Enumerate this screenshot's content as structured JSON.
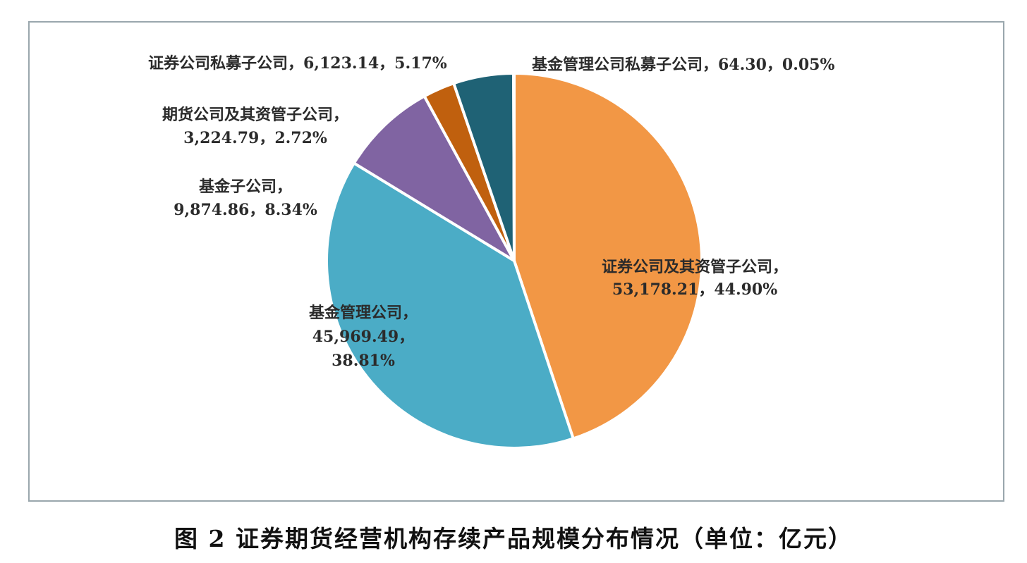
{
  "caption": "图 2   证券期货经营机构存续产品规模分布情况（单位：亿元）",
  "chart_data": {
    "type": "pie",
    "title": "",
    "unit": "亿元",
    "start_angle_deg": 0,
    "direction": "clockwise",
    "slices": [
      {
        "name": "证券公司及其资管子公司",
        "value": 53178.21,
        "percent": 44.9,
        "color": "#F29745",
        "label_lines": [
          "证券公司及其资管子公司，",
          "53,178.21，44.90%"
        ]
      },
      {
        "name": "基金管理公司",
        "value": 45969.49,
        "percent": 38.81,
        "color": "#4BACC6",
        "label_lines": [
          "基金管理公司，",
          "45,969.49，",
          "38.81%"
        ]
      },
      {
        "name": "基金子公司",
        "value": 9874.86,
        "percent": 8.34,
        "color": "#8064A2",
        "label_lines": [
          "基金子公司，",
          "9,874.86，8.34%"
        ]
      },
      {
        "name": "期货公司及其资管子公司",
        "value": 3224.79,
        "percent": 2.72,
        "color": "#C0600E",
        "label_lines": [
          "期货公司及其资管子公司，",
          "3,224.79，2.72%"
        ]
      },
      {
        "name": "证券公司私募子公司",
        "value": 6123.14,
        "percent": 5.17,
        "color": "#1F6275",
        "label_lines": [
          "证券公司私募子公司，6,123.14，5.17%"
        ]
      },
      {
        "name": "基金管理公司私募子公司",
        "value": 64.3,
        "percent": 0.05,
        "color": "#7F7F7F",
        "label_lines": [
          "基金管理公司私募子公司，64.30，0.05%"
        ]
      }
    ]
  }
}
